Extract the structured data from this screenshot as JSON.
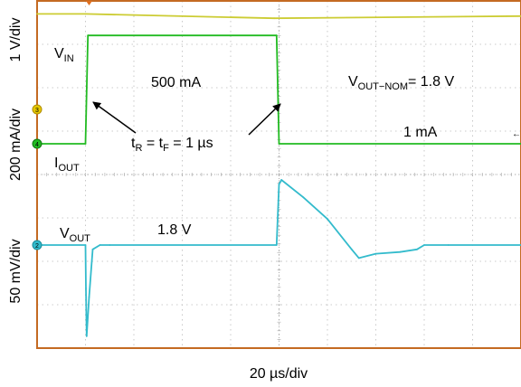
{
  "chart_data": {
    "type": "line",
    "title": "",
    "xlabel": "20 µs/div",
    "ylabels": {
      "vin_scale": "1 V/div",
      "iout_scale": "200 mA/div",
      "vout_scale": "50 mV/div"
    },
    "x_unit": "µs",
    "x_range": [
      0,
      200
    ],
    "grid": {
      "x_divisions": 10,
      "y_divisions": 8,
      "visible": true
    },
    "series": [
      {
        "name": "V_IN",
        "color": "#cccc33",
        "channel": "3",
        "unit": "div",
        "x": [
          0,
          20,
          98,
          200
        ],
        "y": [
          7.7,
          7.7,
          7.6,
          7.65
        ]
      },
      {
        "name": "I_OUT",
        "color": "#22bb22",
        "channel": "4",
        "unit": "mA",
        "x": [
          0,
          20,
          21,
          99,
          100,
          200
        ],
        "y": [
          1,
          1,
          500,
          500,
          1,
          1
        ]
      },
      {
        "name": "V_OUT",
        "color": "#33bbcc",
        "channel": "2",
        "unit": "mV",
        "x": [
          0,
          20,
          20.2,
          20.5,
          21.5,
          23,
          26,
          30,
          99,
          100,
          101,
          110,
          120,
          130,
          133,
          140,
          150,
          157,
          160,
          170,
          200
        ],
        "y": [
          0,
          0,
          -50,
          -105,
          -60,
          -5,
          0,
          0,
          0,
          70,
          75,
          55,
          30,
          -5,
          -15,
          -10,
          -8,
          -5,
          0,
          0,
          0
        ]
      }
    ],
    "annotations": {
      "vin_label": {
        "main": "V",
        "sub": "IN"
      },
      "iout_label": {
        "main": "I",
        "sub": "OUT"
      },
      "vout_label": {
        "main": "V",
        "sub": "OUT"
      },
      "current_high": "500 mA",
      "current_low": "1 mA",
      "vout_level": "1.8 V",
      "nominal_main": "V",
      "nominal_sub": "OUT−NOM",
      "nominal_value": "= 1.8 V",
      "edge_t1": "t",
      "edge_t1_sub": "R",
      "edge_mid": " = t",
      "edge_t2_sub": "F",
      "edge_value": " = 1 µs"
    },
    "channel_markers": [
      "3",
      "4",
      "2"
    ]
  }
}
